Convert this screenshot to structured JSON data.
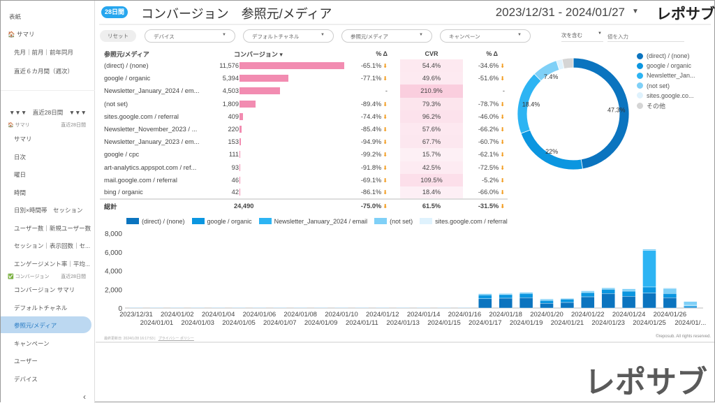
{
  "sidebar": {
    "top": [
      "表紙",
      "サマリ",
      "先月｜前月｜前年同月",
      "直近６カ月間（週次）"
    ],
    "section_header": "▼▼▼　直近28日間　▼▼▼",
    "sec1": {
      "label": "サマリ",
      "range": "直近28日間"
    },
    "sec1_items": [
      "サマリ",
      "日次",
      "曜日",
      "時間",
      "日別×時間帯　セッション",
      "ユーザー数｜新規ユーザー数",
      "セッション｜表示回数｜セ...",
      "エンゲージメント率｜平均..."
    ],
    "sec2": {
      "label": "コンバージョン",
      "range": "直近28日間"
    },
    "sec2_items": [
      "コンバージョン サマリ",
      "デフォルトチャネル",
      "参照元/メディア",
      "キャンペーン",
      "ユーザー",
      "デバイス"
    ],
    "collapse": "‹"
  },
  "header": {
    "badge": "28日間",
    "title": "コンバージョン　参照元/メディア",
    "date_range": "2023/12/31 - 2024/01/27",
    "logo": "レポサブ"
  },
  "filters": {
    "reset": "リセット",
    "items": [
      "デバイス",
      "デフォルトチャネル",
      "参照元/メディア",
      "キャンペーン"
    ],
    "condition": "次を含む",
    "value_placeholder": "値を入力"
  },
  "table": {
    "headers": [
      "参照元/メディア",
      "コンバージョン ▾",
      "% Δ",
      "CVR",
      "% Δ"
    ],
    "rows": [
      {
        "name": "(direct) / (none)",
        "conv": "11,576",
        "v": 11576,
        "d1": "-65.1%",
        "cvr": "54.4%",
        "c": 54.4,
        "d2": "-34.6%"
      },
      {
        "name": "google / organic",
        "conv": "5,394",
        "v": 5394,
        "d1": "-77.1%",
        "cvr": "49.6%",
        "c": 49.6,
        "d2": "-51.6%"
      },
      {
        "name": "Newsletter_January_2024 / em...",
        "conv": "4,503",
        "v": 4503,
        "d1": "-",
        "cvr": "210.9%",
        "c": 210.9,
        "d2": "-"
      },
      {
        "name": "(not set)",
        "conv": "1,809",
        "v": 1809,
        "d1": "-89.4%",
        "cvr": "79.3%",
        "c": 79.3,
        "d2": "-78.7%"
      },
      {
        "name": "sites.google.com / referral",
        "conv": "409",
        "v": 409,
        "d1": "-74.4%",
        "cvr": "96.2%",
        "c": 96.2,
        "d2": "-46.0%"
      },
      {
        "name": "Newsletter_November_2023 / ...",
        "conv": "220",
        "v": 220,
        "d1": "-85.4%",
        "cvr": "57.6%",
        "c": 57.6,
        "d2": "-66.2%"
      },
      {
        "name": "Newsletter_January_2023 / em...",
        "conv": "153",
        "v": 153,
        "d1": "-94.9%",
        "cvr": "67.7%",
        "c": 67.7,
        "d2": "-60.7%"
      },
      {
        "name": "google / cpc",
        "conv": "111",
        "v": 111,
        "d1": "-99.2%",
        "cvr": "15.7%",
        "c": 15.7,
        "d2": "-62.1%"
      },
      {
        "name": "art-analytics.appspot.com / ref...",
        "conv": "93",
        "v": 93,
        "d1": "-91.8%",
        "cvr": "42.5%",
        "c": 42.5,
        "d2": "-72.5%"
      },
      {
        "name": "mail.google.com / referral",
        "conv": "46",
        "v": 46,
        "d1": "-69.1%",
        "cvr": "109.5%",
        "c": 109.5,
        "d2": "-5.2%"
      },
      {
        "name": "bing / organic",
        "conv": "42",
        "v": 42,
        "d1": "-86.1%",
        "cvr": "18.4%",
        "c": 18.4,
        "d2": "-66.0%"
      }
    ],
    "total": {
      "label": "総計",
      "conv": "24,490",
      "d1": "-75.0%",
      "cvr": "61.5%",
      "d2": "-31.5%"
    },
    "down_arrow": "⬇"
  },
  "colors": [
    "#0b74bf",
    "#0b96e0",
    "#2db4f3",
    "#7fd0f7",
    "#dff2fd",
    "#d5d5d5"
  ],
  "chart_data": [
    {
      "type": "pie",
      "title": "",
      "legend": [
        "(direct) / (none)",
        "google / organic",
        "Newsletter_Jan...",
        "(not set)",
        "sites.google.co...",
        "その他"
      ],
      "values": [
        47.3,
        22.0,
        18.4,
        7.4,
        1.7,
        3.2
      ],
      "labels": [
        "47.3%",
        "22%",
        "18.4%",
        "7.4%",
        "",
        ""
      ],
      "legend_position": "right"
    },
    {
      "type": "bar",
      "stacked": true,
      "ylim": [
        0,
        8000
      ],
      "yticks": [
        "0",
        "2,000",
        "4,000",
        "6,000",
        "8,000"
      ],
      "legend_position": "top",
      "categories": [
        "2023/12/31",
        "2024/01/01",
        "2024/01/02",
        "2024/01/03",
        "2024/01/04",
        "2024/01/05",
        "2024/01/06",
        "2024/01/07",
        "2024/01/08",
        "2024/01/09",
        "2024/01/10",
        "2024/01/11",
        "2024/01/12",
        "2024/01/13",
        "2024/01/14",
        "2024/01/15",
        "2024/01/16",
        "2024/01/17",
        "2024/01/18",
        "2024/01/19",
        "2024/01/20",
        "2024/01/21",
        "2024/01/22",
        "2024/01/23",
        "2024/01/24",
        "2024/01/25",
        "2024/01/26",
        "2024/01/..."
      ],
      "series": [
        {
          "name": "(direct) / (none)",
          "values": [
            0,
            0,
            0,
            0,
            0,
            0,
            0,
            0,
            0,
            0,
            0,
            0,
            0,
            0,
            0,
            0,
            0,
            1000,
            1050,
            1100,
            500,
            600,
            1200,
            1550,
            1250,
            1600,
            1100,
            100
          ]
        },
        {
          "name": "google / organic",
          "values": [
            0,
            0,
            0,
            0,
            0,
            0,
            0,
            0,
            0,
            0,
            0,
            0,
            0,
            0,
            0,
            0,
            0,
            400,
            380,
            450,
            300,
            350,
            450,
            450,
            550,
            650,
            450,
            150
          ]
        },
        {
          "name": "Newsletter_January_2024 / email",
          "values": [
            0,
            0,
            0,
            0,
            0,
            0,
            0,
            0,
            0,
            0,
            0,
            0,
            0,
            0,
            0,
            0,
            0,
            0,
            0,
            0,
            0,
            0,
            0,
            0,
            0,
            3900,
            0,
            50
          ]
        },
        {
          "name": "(not set)",
          "values": [
            0,
            0,
            0,
            0,
            0,
            0,
            0,
            0,
            0,
            0,
            0,
            0,
            0,
            0,
            0,
            0,
            0,
            130,
            120,
            130,
            150,
            80,
            180,
            150,
            250,
            150,
            550,
            400
          ]
        },
        {
          "name": "sites.google.com / referral",
          "values": [
            0,
            0,
            0,
            0,
            0,
            0,
            0,
            0,
            0,
            0,
            0,
            0,
            0,
            0,
            0,
            0,
            0,
            70,
            60,
            60,
            60,
            40,
            80,
            60,
            60,
            60,
            100,
            50
          ]
        }
      ]
    }
  ],
  "footer": {
    "updated": "最終更新日: 2024/1/28 16:17:53 |",
    "privacy": "プライバシー ポリシー",
    "copyright": "©reposub. All rights reserved."
  },
  "watermark": "レポサブ"
}
